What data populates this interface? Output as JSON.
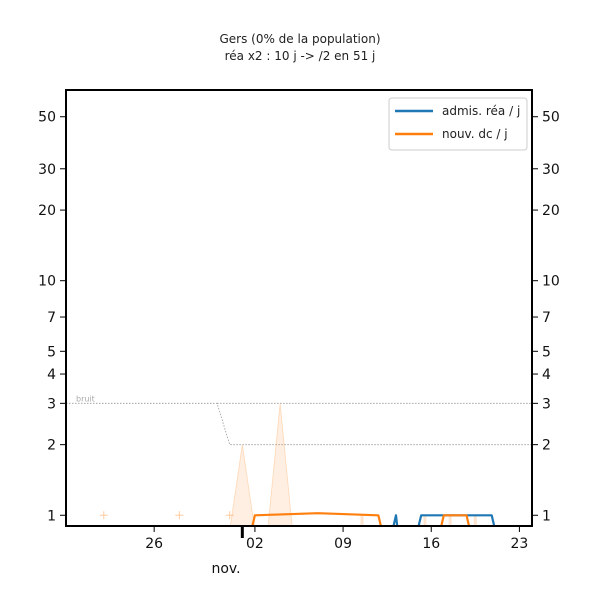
{
  "chart_data": {
    "type": "line",
    "title": "Gers (0% de la population)",
    "subtitle": "réa x2 : 10 j -> /2 en 51 j",
    "xlabel": "",
    "ylabel": "",
    "yscale": "log",
    "ylim": [
      0.9,
      65
    ],
    "xlim": [
      -13,
      24
    ],
    "month_label": "nov.",
    "x_ticks": [
      {
        "day": -6,
        "label": "26"
      },
      {
        "day": 2,
        "label": "02"
      },
      {
        "day": 9,
        "label": "09"
      },
      {
        "day": 16,
        "label": "16"
      },
      {
        "day": 23,
        "label": "23"
      }
    ],
    "y_ticks": [
      {
        "value": 1,
        "label": "1"
      },
      {
        "value": 2,
        "label": "2"
      },
      {
        "value": 3,
        "label": "3"
      },
      {
        "value": 4,
        "label": "4"
      },
      {
        "value": 5,
        "label": "5"
      },
      {
        "value": 7,
        "label": "7"
      },
      {
        "value": 10,
        "label": "10"
      },
      {
        "value": 20,
        "label": "20"
      },
      {
        "value": 30,
        "label": "30"
      },
      {
        "value": 50,
        "label": "50"
      }
    ],
    "series": [
      {
        "name": "admis. réa / j",
        "color": "#1f77b4",
        "segments": [
          [
            [
              13.0,
              0.8
            ],
            [
              13.2,
              1.0
            ],
            [
              13.3,
              0.8
            ]
          ],
          [
            [
              15.0,
              0.8
            ],
            [
              15.2,
              1.0
            ],
            [
              20.8,
              1.0
            ],
            [
              21.0,
              0.8
            ]
          ]
        ]
      },
      {
        "name": "nouv. dc / j",
        "color": "#ff7f0e",
        "segments": [
          [
            [
              1.8,
              0.8
            ],
            [
              2.0,
              1.0
            ],
            [
              7.0,
              1.02
            ],
            [
              11.8,
              1.0
            ],
            [
              12.0,
              0.8
            ]
          ],
          [
            [
              16.8,
              0.8
            ],
            [
              17.0,
              1.0
            ],
            [
              18.8,
              1.0
            ],
            [
              19.0,
              0.8
            ]
          ]
        ]
      }
    ],
    "noise_line": {
      "label": "bruit",
      "before": [
        [
          -13,
          3.0
        ],
        [
          -1,
          3.0
        ],
        [
          0,
          2.0
        ],
        [
          24,
          2.0
        ]
      ],
      "after": [
        [
          -1,
          3.0
        ],
        [
          24,
          3.0
        ]
      ]
    },
    "raw_deaths": {
      "color": "#ff7f0e",
      "crosses": [
        [
          -10,
          1
        ],
        [
          -4,
          1
        ],
        [
          0,
          1
        ]
      ],
      "spikes": [
        [
          1,
          2.0
        ],
        [
          4,
          3.0
        ]
      ],
      "faint_bars": [
        [
          10.5,
          1
        ],
        [
          15.5,
          1
        ],
        [
          17.5,
          1
        ],
        [
          19.5,
          1
        ]
      ]
    },
    "legend": {
      "placement": "top-right"
    },
    "grid": false
  }
}
